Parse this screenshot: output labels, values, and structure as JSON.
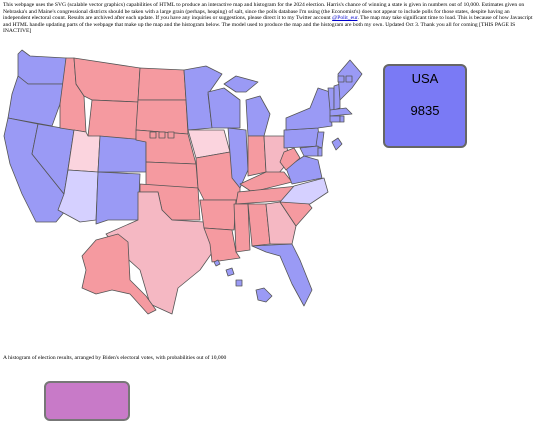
{
  "intro": {
    "text_before_link": "This webpage uses the SVG (scalable vector graphics) capabilities of HTML to produce an interactive map and histogram for the 2024 election. Harris's chance of winning a state is given in numbers out of 10,000. Estimates given on Nebraska's and Maine's congressional districts should be taken with a large grain (perhaps, heaping) of salt, since the polls database I'm using (the Economist's) does not appear to include polls for those states, despite having an independent electoral count. Results are archived after each update. If you have any inquiries or suggestions, please direct it to my Twitter account ",
    "link_text": "@Polit_eur",
    "text_after_link": ". The map may take significant time to load. This is because of how Javascript and HTML handle updating parts of the webpage that make up the map and the histogram below. The model used to produce the map and the histogram are both my own. Updated Oct 3. Thank you all for coming [THIS PAGE IS INACTIVE]"
  },
  "summary": {
    "label": "USA",
    "value": "9835"
  },
  "histogram": {
    "caption": "A histogram of election results, arranged by Biden's electoral votes, with probabilities out of 10,000"
  },
  "colors": {
    "strong_blue": "#9a9af5",
    "lean_blue": "#d5d0ff",
    "strong_red": "#f59aa0",
    "lean_red": "#f5b8c3",
    "tilt_red": "#fbd4de",
    "usa_box": "#7a7af5",
    "histogram_box": "#c87ac8"
  }
}
